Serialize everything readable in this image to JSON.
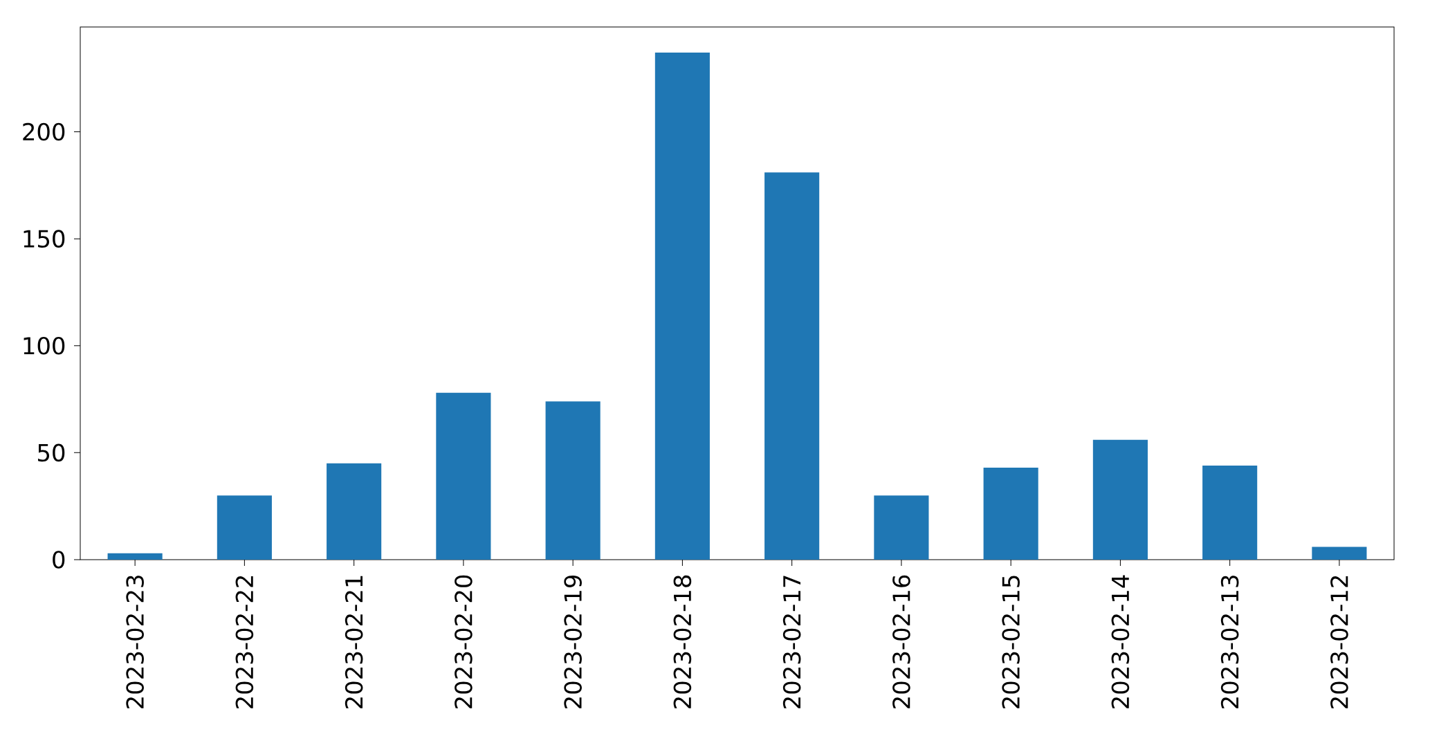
{
  "chart_data": {
    "type": "bar",
    "categories": [
      "2023-02-23",
      "2023-02-22",
      "2023-02-21",
      "2023-02-20",
      "2023-02-19",
      "2023-02-18",
      "2023-02-17",
      "2023-02-16",
      "2023-02-15",
      "2023-02-14",
      "2023-02-13",
      "2023-02-12"
    ],
    "values": [
      3,
      30,
      45,
      78,
      74,
      237,
      181,
      30,
      43,
      56,
      44,
      6
    ],
    "color": "#1f77b4",
    "ylim": [
      0,
      249
    ],
    "yticks": [
      0,
      50,
      100,
      150,
      200
    ]
  }
}
